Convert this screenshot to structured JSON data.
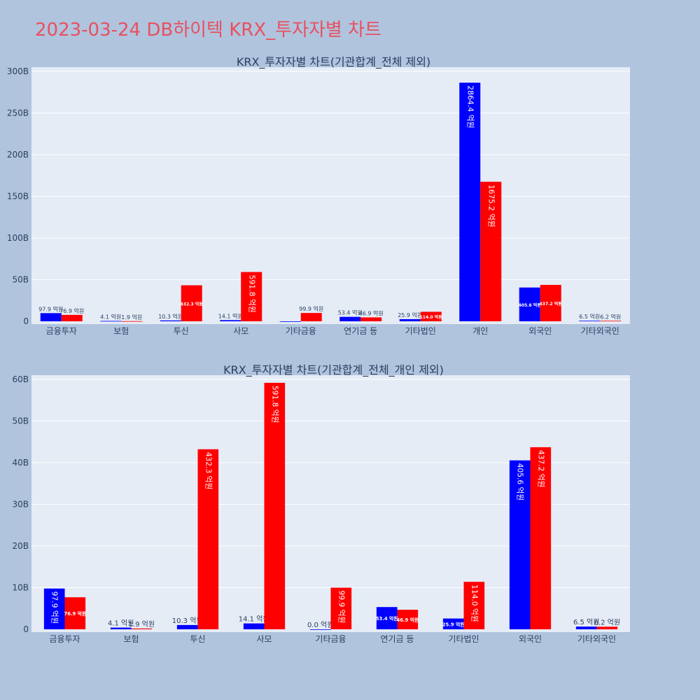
{
  "page_title": "2023-03-24 DB하이텍 KRX_투자자별 차트",
  "colors": {
    "buy": "#0000ff",
    "sell": "#ff0000",
    "plot_bg": "#e5ecf6",
    "page_bg": "#b0c4de",
    "title": "#e8505f"
  },
  "chart_data": [
    {
      "type": "bar",
      "title": "KRX_투자자별 차트(기관합계_전체 제외)",
      "categories": [
        "금융투자",
        "보험",
        "투신",
        "사모",
        "기타금융",
        "연기금 등",
        "기타법인",
        "개인",
        "외국인",
        "기타외국인"
      ],
      "series": [
        {
          "name": "buy",
          "values": [
            9.79,
            0.41,
            1.03,
            1.41,
            0.0,
            5.34,
            2.59,
            286.44,
            40.56,
            0.65
          ],
          "labels": [
            "97.9 억원",
            "4.1 억원",
            "10.3 억원",
            "14.1 억원",
            "",
            "53.4 억원",
            "25.9 억원",
            "2864.4 억원",
            "405.6 억원",
            "6.5 억원"
          ]
        },
        {
          "name": "sell",
          "values": [
            7.69,
            0.19,
            43.23,
            59.18,
            9.99,
            4.69,
            11.4,
            167.52,
            43.72,
            0.62
          ],
          "labels": [
            "76.9 억원",
            "1.9 억원",
            "432.3 억원",
            "591.8 억원",
            "99.9 억원",
            "46.9 억원",
            "114.0 억원",
            "1675.2 억원",
            "437.2 억원",
            "6.2 억원"
          ]
        }
      ],
      "ylim": [
        0,
        300
      ],
      "yticks": [
        0,
        50,
        100,
        150,
        200,
        250,
        300
      ],
      "ytick_labels": [
        "0",
        "50B",
        "100B",
        "150B",
        "200B",
        "250B",
        "300B"
      ],
      "xlabel": "",
      "ylabel": ""
    },
    {
      "type": "bar",
      "title": "KRX_투자자별 차트(기관합계_전체_개인 제외)",
      "categories": [
        "금융투자",
        "보험",
        "투신",
        "사모",
        "기타금융",
        "연기금 등",
        "기타법인",
        "외국인",
        "기타외국인"
      ],
      "series": [
        {
          "name": "buy",
          "values": [
            9.79,
            0.41,
            1.03,
            1.41,
            0.0,
            5.34,
            2.59,
            40.56,
            0.65
          ],
          "labels": [
            "97.9 억원",
            "4.1 억원",
            "10.3 억원",
            "14.1 억원",
            "0.0 억원",
            "53.4 억원",
            "25.9 억원",
            "405.6 억원",
            "6.5 억원"
          ]
        },
        {
          "name": "sell",
          "values": [
            7.69,
            0.19,
            43.23,
            59.18,
            9.99,
            4.69,
            11.4,
            43.72,
            0.62
          ],
          "labels": [
            "76.9 억원",
            "1.9 억원",
            "432.3 억원",
            "591.8 억원",
            "99.9 억원",
            "46.9 억원",
            "114.0 억원",
            "437.2 억원",
            "6.2 억원"
          ]
        }
      ],
      "ylim": [
        0,
        60
      ],
      "yticks": [
        0,
        10,
        20,
        30,
        40,
        50,
        60
      ],
      "ytick_labels": [
        "0",
        "10B",
        "20B",
        "30B",
        "40B",
        "50B",
        "60B"
      ],
      "xlabel": "",
      "ylabel": ""
    }
  ]
}
